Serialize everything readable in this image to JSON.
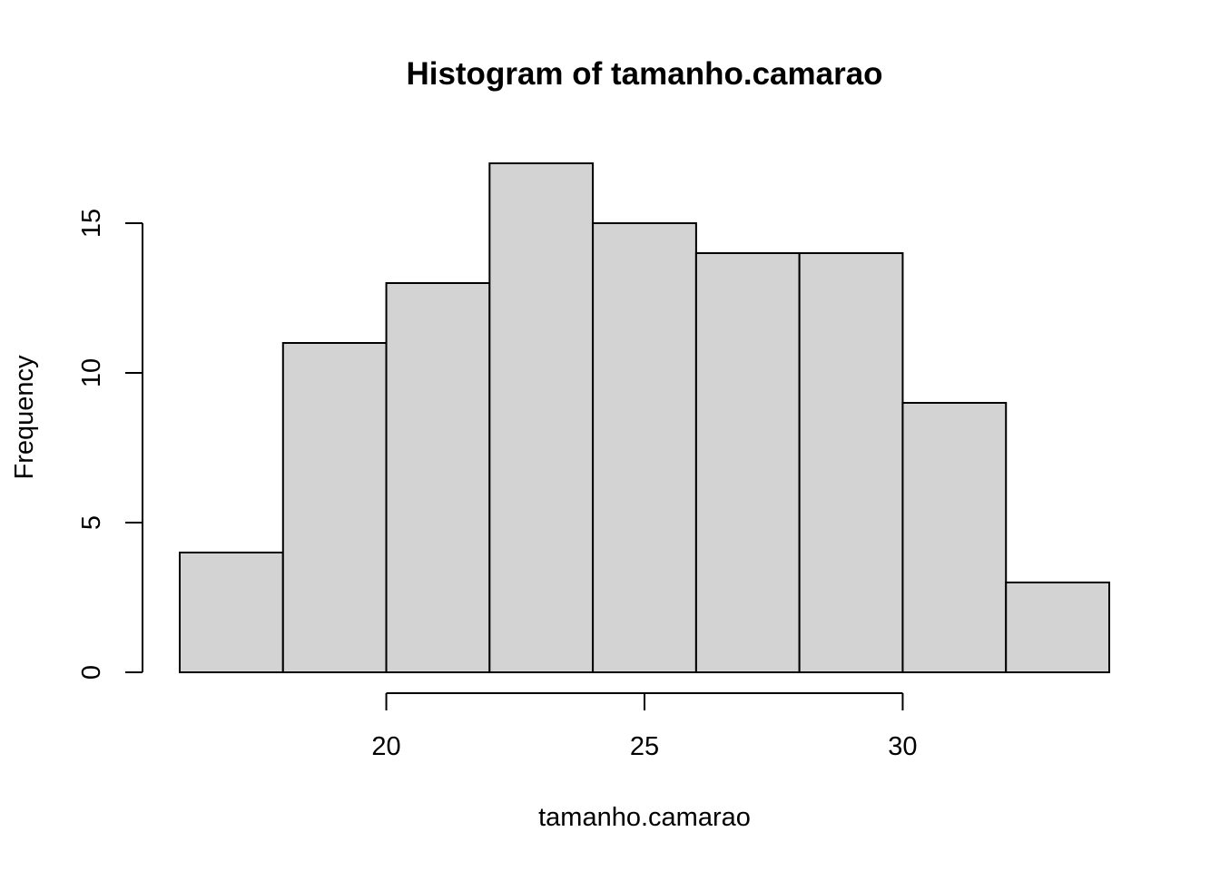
{
  "chart_data": {
    "type": "bar",
    "subtype": "histogram",
    "title": "Histogram of tamanho.camarao",
    "xlabel": "tamanho.camarao",
    "ylabel": "Frequency",
    "bins": [
      {
        "start": 16,
        "end": 18,
        "count": 4
      },
      {
        "start": 18,
        "end": 20,
        "count": 11
      },
      {
        "start": 20,
        "end": 22,
        "count": 13
      },
      {
        "start": 22,
        "end": 24,
        "count": 17
      },
      {
        "start": 24,
        "end": 26,
        "count": 15
      },
      {
        "start": 26,
        "end": 28,
        "count": 14
      },
      {
        "start": 28,
        "end": 30,
        "count": 14
      },
      {
        "start": 30,
        "end": 32,
        "count": 9
      },
      {
        "start": 32,
        "end": 34,
        "count": 3
      }
    ],
    "x_ticks": [
      20,
      25,
      30
    ],
    "x_tick_labels": [
      "20",
      "25",
      "30"
    ],
    "y_ticks": [
      0,
      5,
      10,
      15
    ],
    "y_tick_labels": [
      "0",
      "5",
      "10",
      "15"
    ],
    "xlim": [
      16,
      34
    ],
    "ylim": [
      0,
      17
    ],
    "grid": false,
    "bar_fill": "#d3d3d3",
    "bar_stroke": "#000000"
  }
}
